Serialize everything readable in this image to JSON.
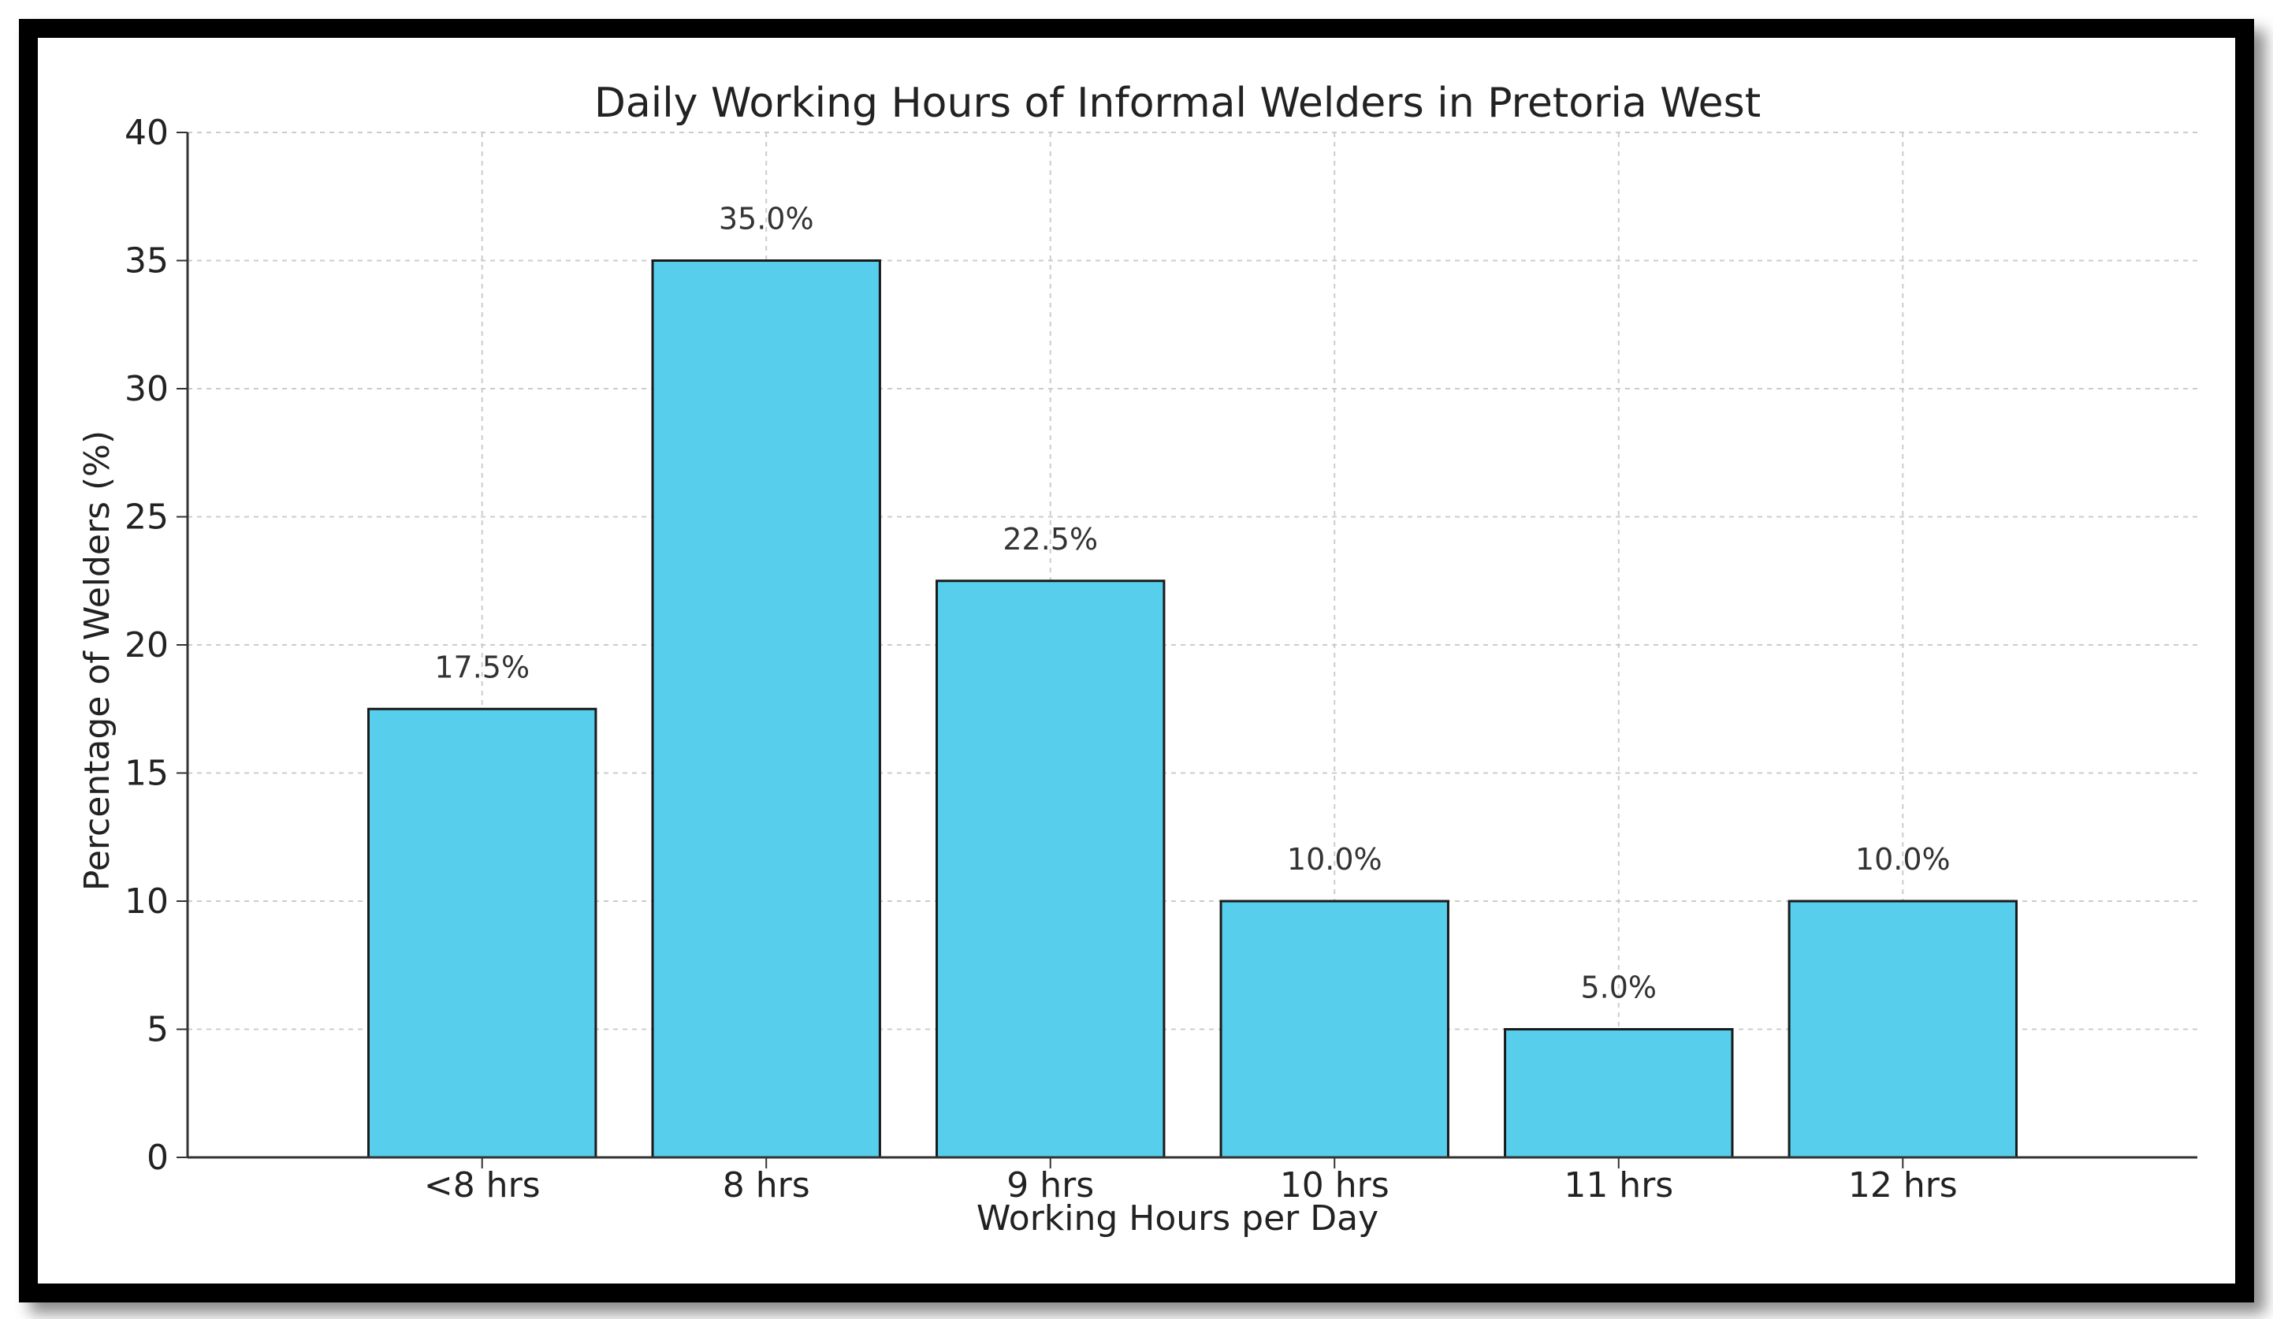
{
  "chart_data": {
    "type": "bar",
    "title": "Daily Working Hours of Informal Welders in Pretoria West",
    "xlabel": "Working Hours per Day",
    "ylabel": "Percentage of Welders (%)",
    "categories": [
      "<8 hrs",
      "8 hrs",
      "9 hrs",
      "10 hrs",
      "11 hrs",
      "12 hrs"
    ],
    "values": [
      17.5,
      35.0,
      22.5,
      10.0,
      5.0,
      10.0
    ],
    "data_labels": [
      "17.5%",
      "35.0%",
      "22.5%",
      "10.0%",
      "5.0%",
      "10.0%"
    ],
    "ylim": [
      0,
      40
    ],
    "yticks": [
      0,
      5,
      10,
      15,
      20,
      25,
      30,
      35,
      40
    ],
    "grid": true,
    "colors": {
      "bar": "#56CEEC",
      "bar_edge": "#1a1a1a",
      "grid": "#cccccc",
      "frame": "#000000"
    }
  }
}
